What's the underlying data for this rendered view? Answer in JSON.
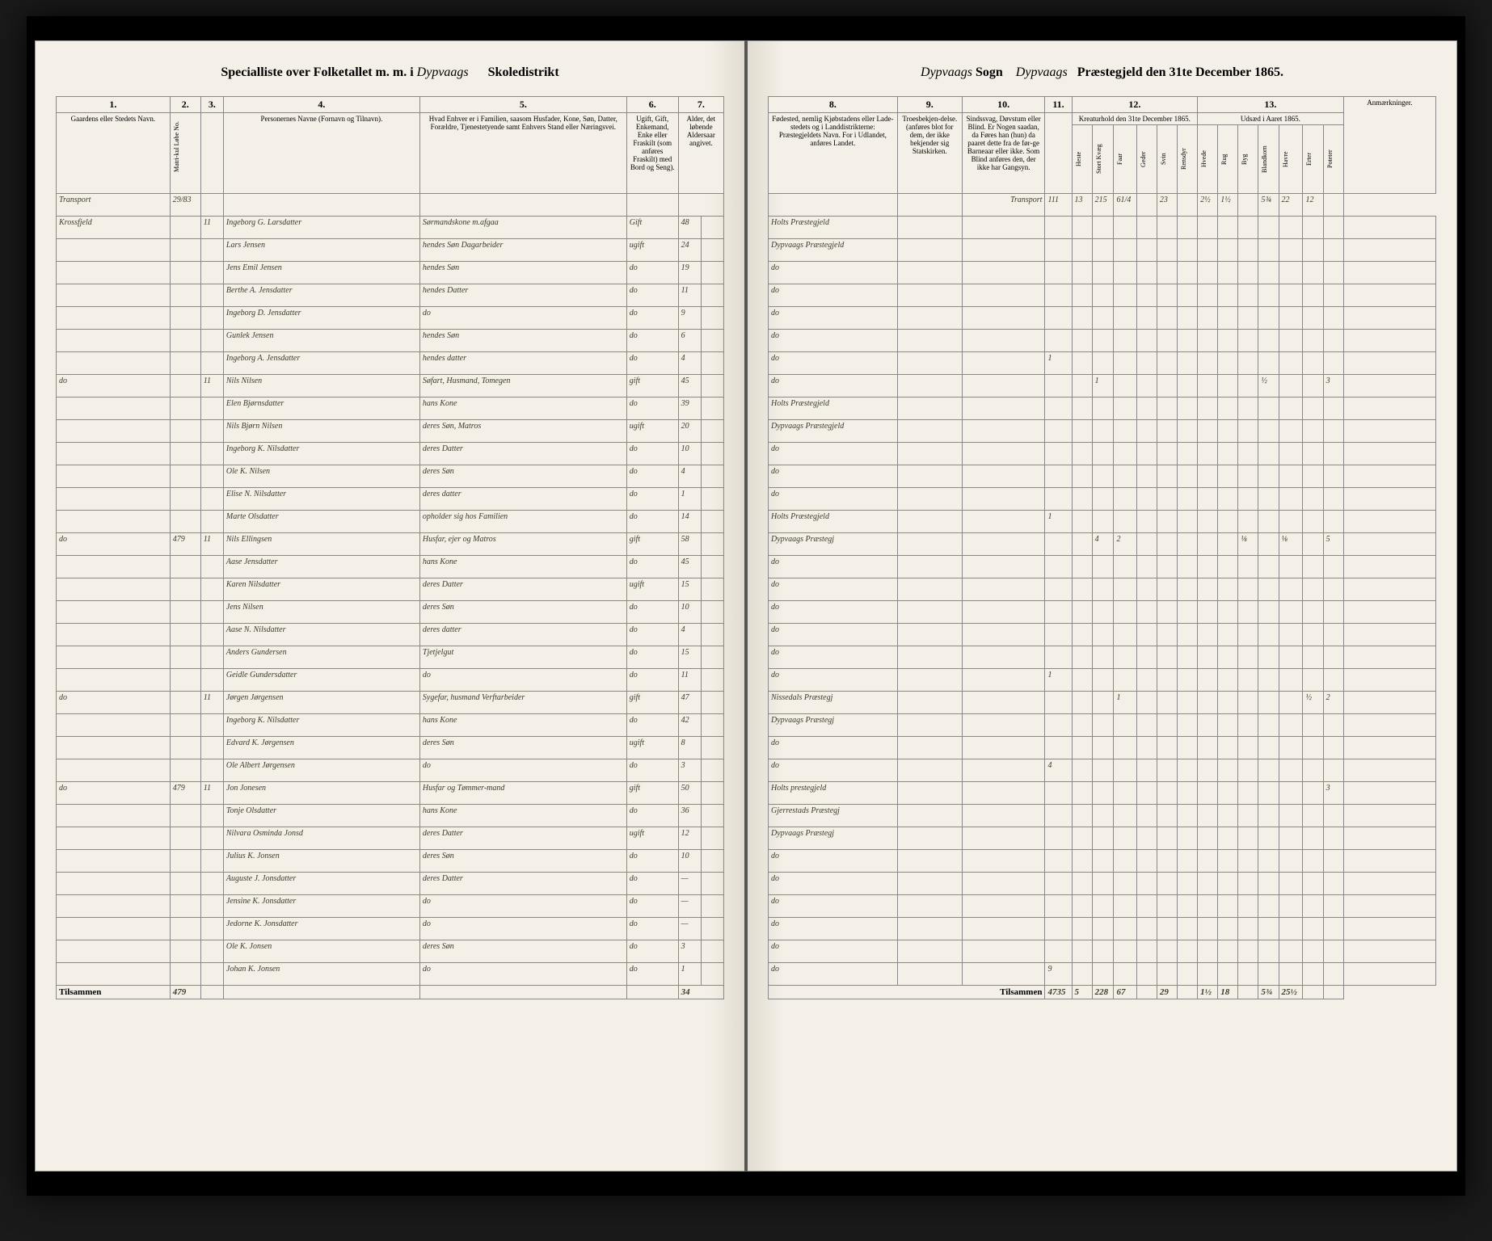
{
  "header_left": {
    "prefix": "Specialliste over Folketallet m. m. i",
    "district": "Dypvaags",
    "suffix": "Skoledistrikt"
  },
  "header_right": {
    "sogn": "Dypvaags",
    "sogn_label": "Sogn",
    "praestegjeld": "Dypvaags",
    "date_label": "Præstegjeld den 31te December 1865."
  },
  "col_headers_left": {
    "c1": "1.",
    "c2": "2.",
    "c3": "3.",
    "c4": "4.",
    "c5": "5.",
    "c6": "6.",
    "c7": "7.",
    "c1_label": "Gaardens eller Stedets\nNavn.",
    "c2_label": "Matri-kul Løbe No.",
    "c3_label": "—",
    "c4_label": "Personernes Navne (Fornavn og Tilnavn).",
    "c5_label": "Hvad Enhver er i Familien, saasom Husfader, Kone, Søn, Datter, Forældre, Tjenestetyende samt\nEnhvers Stand eller Næringsvei.",
    "c6_label": "Ugift, Gift, Enkemand, Enke eller Fraskilt (som anføres Fraskilt) med Bord og Seng).",
    "c7_label": "Alder, det løbende Aldersaar angivet."
  },
  "col_headers_right": {
    "c8": "8.",
    "c9": "9.",
    "c10": "10.",
    "c11": "11.",
    "c12": "12.",
    "c13": "13.",
    "c8_label": "Fødested,\nnemlig Kjøbstadens eller Lade-stedets og i Landdistrikterne: Præstegjeldets Navn. For i Udlandet, anføres Landet.",
    "c9_label": "Troesbekjen-delse. (anføres blot for dem, der ikke bekjender sig Statskirken.",
    "c10_label": "Sindssvag, Døvstum eller Blind. Er Nogen saadan, da Føres han (hun) da paaret dette fra de før-ge Barneaar eller ikke. Som Blind anføres den, der ikke har Gangsyn.",
    "c11_label": "—",
    "c12_label": "Kreaturhold den 31te December 1865.",
    "c13_label": "Udsæd i Aaret 1865.",
    "remarks": "Anmærkninger."
  },
  "sub_headers_12": [
    "Heste",
    "Stort Kvæg",
    "Faar",
    "Geder",
    "Svin",
    "Rensdyr"
  ],
  "sub_headers_13": [
    "Hvede",
    "Rug",
    "Byg",
    "Blandkorn",
    "Havre",
    "Erter",
    "Poteter"
  ],
  "transport_label": "Transport",
  "transport_values": [
    "111",
    "13",
    "215",
    "61/4",
    "",
    "23",
    "",
    "2½",
    "1½",
    "",
    "5¾",
    "22",
    "12"
  ],
  "rows": [
    {
      "gaard": "Krossfjeld",
      "matr": "",
      "hus": "1",
      "fam": "1",
      "navn": "Ingeborg G. Larsdatter",
      "stilling": "Sørmandskone m.afgaa",
      "stand": "Gift",
      "alder": "48",
      "fodested": "Holts Præstegjeld",
      "c11": "",
      "kreatur": [
        "",
        "",
        "",
        "",
        "",
        ""
      ],
      "udsaed": [
        "",
        "",
        "",
        "",
        "",
        "",
        ""
      ]
    },
    {
      "gaard": "",
      "matr": "",
      "hus": "",
      "fam": "",
      "navn": "Lars Jensen",
      "stilling": "hendes Søn Dagarbeider",
      "stand": "ugift",
      "alder": "24",
      "fodested": "Dypvaags Præstegjeld",
      "c11": "",
      "kreatur": [
        "",
        "",
        "",
        "",
        "",
        ""
      ],
      "udsaed": [
        "",
        "",
        "",
        "",
        "",
        "",
        ""
      ]
    },
    {
      "gaard": "",
      "matr": "",
      "hus": "",
      "fam": "",
      "navn": "Jens Emil Jensen",
      "stilling": "hendes Søn",
      "stand": "do",
      "alder": "19",
      "fodested": "do",
      "c11": "",
      "kreatur": [
        "",
        "",
        "",
        "",
        "",
        ""
      ],
      "udsaed": [
        "",
        "",
        "",
        "",
        "",
        "",
        ""
      ]
    },
    {
      "gaard": "",
      "matr": "",
      "hus": "",
      "fam": "",
      "navn": "Berthe A. Jensdatter",
      "stilling": "hendes Datter",
      "stand": "do",
      "alder": "11",
      "fodested": "do",
      "c11": "",
      "kreatur": [
        "",
        "",
        "",
        "",
        "",
        ""
      ],
      "udsaed": [
        "",
        "",
        "",
        "",
        "",
        "",
        ""
      ]
    },
    {
      "gaard": "",
      "matr": "",
      "hus": "",
      "fam": "",
      "navn": "Ingeborg D. Jensdatter",
      "stilling": "do",
      "stand": "do",
      "alder": "9",
      "fodested": "do",
      "c11": "",
      "kreatur": [
        "",
        "",
        "",
        "",
        "",
        ""
      ],
      "udsaed": [
        "",
        "",
        "",
        "",
        "",
        "",
        ""
      ]
    },
    {
      "gaard": "",
      "matr": "",
      "hus": "",
      "fam": "",
      "navn": "Gunlek Jensen",
      "stilling": "hendes Søn",
      "stand": "do",
      "alder": "6",
      "fodested": "do",
      "c11": "",
      "kreatur": [
        "",
        "",
        "",
        "",
        "",
        ""
      ],
      "udsaed": [
        "",
        "",
        "",
        "",
        "",
        "",
        ""
      ]
    },
    {
      "gaard": "",
      "matr": "",
      "hus": "",
      "fam": "",
      "navn": "Ingeborg A. Jensdatter",
      "stilling": "hendes datter",
      "stand": "do",
      "alder": "4",
      "fodested": "do",
      "c11": "1",
      "kreatur": [
        "",
        "",
        "",
        "",
        "",
        ""
      ],
      "udsaed": [
        "",
        "",
        "",
        "",
        "",
        "",
        ""
      ]
    },
    {
      "gaard": "do",
      "matr": "",
      "hus": "1",
      "fam": "1",
      "navn": "Nils Nilsen",
      "stilling": "Søfart, Husmand, Tomegen",
      "stand": "gift",
      "alder": "45",
      "fodested": "do",
      "c11": "",
      "kreatur": [
        "",
        "1",
        "",
        "",
        "",
        ""
      ],
      "udsaed": [
        "",
        "",
        "",
        "½",
        "",
        "",
        "3"
      ]
    },
    {
      "gaard": "",
      "matr": "",
      "hus": "",
      "fam": "",
      "navn": "Elen Bjørnsdatter",
      "stilling": "hans Kone",
      "stand": "do",
      "alder": "39",
      "fodested": "Holts Præstegjeld",
      "c11": "",
      "kreatur": [
        "",
        "",
        "",
        "",
        "",
        ""
      ],
      "udsaed": [
        "",
        "",
        "",
        "",
        "",
        "",
        ""
      ]
    },
    {
      "gaard": "",
      "matr": "",
      "hus": "",
      "fam": "",
      "navn": "Nils Bjørn Nilsen",
      "stilling": "deres Søn, Matros",
      "stand": "ugift",
      "alder": "20",
      "fodested": "Dypvaags Præstegjeld",
      "c11": "",
      "kreatur": [
        "",
        "",
        "",
        "",
        "",
        ""
      ],
      "udsaed": [
        "",
        "",
        "",
        "",
        "",
        "",
        ""
      ]
    },
    {
      "gaard": "",
      "matr": "",
      "hus": "",
      "fam": "",
      "navn": "Ingeborg K. Nilsdatter",
      "stilling": "deres Datter",
      "stand": "do",
      "alder": "10",
      "fodested": "do",
      "c11": "",
      "kreatur": [
        "",
        "",
        "",
        "",
        "",
        ""
      ],
      "udsaed": [
        "",
        "",
        "",
        "",
        "",
        "",
        ""
      ]
    },
    {
      "gaard": "",
      "matr": "",
      "hus": "",
      "fam": "",
      "navn": "Ole K. Nilsen",
      "stilling": "deres Søn",
      "stand": "do",
      "alder": "4",
      "fodested": "do",
      "c11": "",
      "kreatur": [
        "",
        "",
        "",
        "",
        "",
        ""
      ],
      "udsaed": [
        "",
        "",
        "",
        "",
        "",
        "",
        ""
      ]
    },
    {
      "gaard": "",
      "matr": "",
      "hus": "",
      "fam": "",
      "navn": "Elise N. Nilsdatter",
      "stilling": "deres datter",
      "stand": "do",
      "alder": "1",
      "fodested": "do",
      "c11": "",
      "kreatur": [
        "",
        "",
        "",
        "",
        "",
        ""
      ],
      "udsaed": [
        "",
        "",
        "",
        "",
        "",
        "",
        ""
      ]
    },
    {
      "gaard": "",
      "matr": "",
      "hus": "",
      "fam": "",
      "navn": "Marte Olsdatter",
      "stilling": "opholder sig hos Familien",
      "stand": "do",
      "alder": "14",
      "fodested": "Holts Præstegjeld",
      "c11": "1",
      "kreatur": [
        "",
        "",
        "",
        "",
        "",
        ""
      ],
      "udsaed": [
        "",
        "",
        "",
        "",
        "",
        "",
        ""
      ]
    },
    {
      "gaard": "do",
      "matr": "479",
      "hus": "1",
      "fam": "1",
      "navn": "Nils Ellingsen",
      "stilling": "Husfar, ejer og Matros",
      "stand": "gift",
      "alder": "58",
      "fodested": "Dypvaags Præstegj",
      "c11": "",
      "kreatur": [
        "",
        "4",
        "2",
        "",
        "",
        ""
      ],
      "udsaed": [
        "",
        "",
        "⅛",
        "",
        "⅛",
        "",
        "5"
      ]
    },
    {
      "gaard": "",
      "matr": "",
      "hus": "",
      "fam": "",
      "navn": "Aase Jensdatter",
      "stilling": "hans Kone",
      "stand": "do",
      "alder": "45",
      "fodested": "do",
      "c11": "",
      "kreatur": [
        "",
        "",
        "",
        "",
        "",
        ""
      ],
      "udsaed": [
        "",
        "",
        "",
        "",
        "",
        "",
        ""
      ]
    },
    {
      "gaard": "",
      "matr": "",
      "hus": "",
      "fam": "",
      "navn": "Karen Nilsdatter",
      "stilling": "deres Datter",
      "stand": "ugift",
      "alder": "15",
      "fodested": "do",
      "c11": "",
      "kreatur": [
        "",
        "",
        "",
        "",
        "",
        ""
      ],
      "udsaed": [
        "",
        "",
        "",
        "",
        "",
        "",
        ""
      ]
    },
    {
      "gaard": "",
      "matr": "",
      "hus": "",
      "fam": "",
      "navn": "Jens Nilsen",
      "stilling": "deres Søn",
      "stand": "do",
      "alder": "10",
      "fodested": "do",
      "c11": "",
      "kreatur": [
        "",
        "",
        "",
        "",
        "",
        ""
      ],
      "udsaed": [
        "",
        "",
        "",
        "",
        "",
        "",
        ""
      ]
    },
    {
      "gaard": "",
      "matr": "",
      "hus": "",
      "fam": "",
      "navn": "Aase N. Nilsdatter",
      "stilling": "deres datter",
      "stand": "do",
      "alder": "4",
      "fodested": "do",
      "c11": "",
      "kreatur": [
        "",
        "",
        "",
        "",
        "",
        ""
      ],
      "udsaed": [
        "",
        "",
        "",
        "",
        "",
        "",
        ""
      ]
    },
    {
      "gaard": "",
      "matr": "",
      "hus": "",
      "fam": "",
      "navn": "Anders Gundersen",
      "stilling": "Tjetjelgut",
      "stand": "do",
      "alder": "15",
      "fodested": "do",
      "c11": "",
      "kreatur": [
        "",
        "",
        "",
        "",
        "",
        ""
      ],
      "udsaed": [
        "",
        "",
        "",
        "",
        "",
        "",
        ""
      ]
    },
    {
      "gaard": "",
      "matr": "",
      "hus": "",
      "fam": "",
      "navn": "Geidle Gundersdatter",
      "stilling": "do",
      "stand": "do",
      "alder": "11",
      "fodested": "do",
      "c11": "1",
      "kreatur": [
        "",
        "",
        "",
        "",
        "",
        ""
      ],
      "udsaed": [
        "",
        "",
        "",
        "",
        "",
        "",
        ""
      ]
    },
    {
      "gaard": "do",
      "matr": "",
      "hus": "1",
      "fam": "1",
      "navn": "Jørgen Jørgensen",
      "stilling": "Sygefar, husmand Verftarbeider",
      "stand": "gift",
      "alder": "47",
      "fodested": "Nissedals Præstegj",
      "c11": "",
      "kreatur": [
        "",
        "",
        "1",
        "",
        "",
        ""
      ],
      "udsaed": [
        "",
        "",
        "",
        "",
        "",
        "½",
        "2"
      ]
    },
    {
      "gaard": "",
      "matr": "",
      "hus": "",
      "fam": "",
      "navn": "Ingeborg K. Nilsdatter",
      "stilling": "hans Kone",
      "stand": "do",
      "alder": "42",
      "fodested": "Dypvaags Præstegj",
      "c11": "",
      "kreatur": [
        "",
        "",
        "",
        "",
        "",
        ""
      ],
      "udsaed": [
        "",
        "",
        "",
        "",
        "",
        "",
        ""
      ]
    },
    {
      "gaard": "",
      "matr": "",
      "hus": "",
      "fam": "",
      "navn": "Edvard K. Jørgensen",
      "stilling": "deres Søn",
      "stand": "ugift",
      "alder": "8",
      "fodested": "do",
      "c11": "",
      "kreatur": [
        "",
        "",
        "",
        "",
        "",
        ""
      ],
      "udsaed": [
        "",
        "",
        "",
        "",
        "",
        "",
        ""
      ]
    },
    {
      "gaard": "",
      "matr": "",
      "hus": "",
      "fam": "",
      "navn": "Ole Albert Jørgensen",
      "stilling": "do",
      "stand": "do",
      "alder": "3",
      "fodested": "do",
      "c11": "4",
      "kreatur": [
        "",
        "",
        "",
        "",
        "",
        ""
      ],
      "udsaed": [
        "",
        "",
        "",
        "",
        "",
        "",
        ""
      ]
    },
    {
      "gaard": "do",
      "matr": "479",
      "hus": "1",
      "fam": "1",
      "navn": "Jon Jonesen",
      "stilling": "Husfar og Tømmer-mand",
      "stand": "gift",
      "alder": "50",
      "fodested": "Holts prestegjeld",
      "c11": "",
      "kreatur": [
        "",
        "",
        "",
        "",
        "",
        ""
      ],
      "udsaed": [
        "",
        "",
        "",
        "",
        "",
        "",
        "3"
      ]
    },
    {
      "gaard": "",
      "matr": "",
      "hus": "",
      "fam": "",
      "navn": "Tonje Olsdatter",
      "stilling": "hans Kone",
      "stand": "do",
      "alder": "36",
      "fodested": "Gjerrestads Præstegj",
      "c11": "",
      "kreatur": [
        "",
        "",
        "",
        "",
        "",
        ""
      ],
      "udsaed": [
        "",
        "",
        "",
        "",
        "",
        "",
        ""
      ]
    },
    {
      "gaard": "",
      "matr": "",
      "hus": "",
      "fam": "",
      "navn": "Nilvara Osminda Jonsd",
      "stilling": "deres Datter",
      "stand": "ugift",
      "alder": "12",
      "fodested": "Dypvaags Præstegj",
      "c11": "",
      "kreatur": [
        "",
        "",
        "",
        "",
        "",
        ""
      ],
      "udsaed": [
        "",
        "",
        "",
        "",
        "",
        "",
        ""
      ]
    },
    {
      "gaard": "",
      "matr": "",
      "hus": "",
      "fam": "",
      "navn": "Julius K. Jonsen",
      "stilling": "deres Søn",
      "stand": "do",
      "alder": "10",
      "fodested": "do",
      "c11": "",
      "kreatur": [
        "",
        "",
        "",
        "",
        "",
        ""
      ],
      "udsaed": [
        "",
        "",
        "",
        "",
        "",
        "",
        ""
      ]
    },
    {
      "gaard": "",
      "matr": "",
      "hus": "",
      "fam": "",
      "navn": "Auguste J. Jonsdatter",
      "stilling": "deres Datter",
      "stand": "do",
      "alder": "—",
      "fodested": "do",
      "c11": "",
      "kreatur": [
        "",
        "",
        "",
        "",
        "",
        ""
      ],
      "udsaed": [
        "",
        "",
        "",
        "",
        "",
        "",
        ""
      ]
    },
    {
      "gaard": "",
      "matr": "",
      "hus": "",
      "fam": "",
      "navn": "Jensine K. Jonsdatter",
      "stilling": "do",
      "stand": "do",
      "alder": "—",
      "fodested": "do",
      "c11": "",
      "kreatur": [
        "",
        "",
        "",
        "",
        "",
        ""
      ],
      "udsaed": [
        "",
        "",
        "",
        "",
        "",
        "",
        ""
      ]
    },
    {
      "gaard": "",
      "matr": "",
      "hus": "",
      "fam": "",
      "navn": "Jedorne K. Jonsdatter",
      "stilling": "do",
      "stand": "do",
      "alder": "—",
      "fodested": "do",
      "c11": "",
      "kreatur": [
        "",
        "",
        "",
        "",
        "",
        ""
      ],
      "udsaed": [
        "",
        "",
        "",
        "",
        "",
        "",
        ""
      ]
    },
    {
      "gaard": "",
      "matr": "",
      "hus": "",
      "fam": "",
      "navn": "Ole K. Jonsen",
      "stilling": "deres Søn",
      "stand": "do",
      "alder": "3",
      "fodested": "do",
      "c11": "",
      "kreatur": [
        "",
        "",
        "",
        "",
        "",
        ""
      ],
      "udsaed": [
        "",
        "",
        "",
        "",
        "",
        "",
        ""
      ]
    },
    {
      "gaard": "",
      "matr": "",
      "hus": "",
      "fam": "",
      "navn": "Johan K. Jonsen",
      "stilling": "do",
      "stand": "do",
      "alder": "1",
      "fodested": "do",
      "c11": "9",
      "kreatur": [
        "",
        "",
        "",
        "",
        "",
        ""
      ],
      "udsaed": [
        "",
        "",
        "",
        "",
        "",
        "",
        ""
      ]
    }
  ],
  "footer": {
    "label_left": "Tilsammen",
    "matr_total": "479",
    "alder_total": "34",
    "label_right": "Tilsammen",
    "totals_right": [
      "4735",
      "5",
      "228",
      "67",
      "",
      "29",
      "",
      "1½",
      "18",
      "",
      "5¾",
      "25½",
      ""
    ]
  }
}
